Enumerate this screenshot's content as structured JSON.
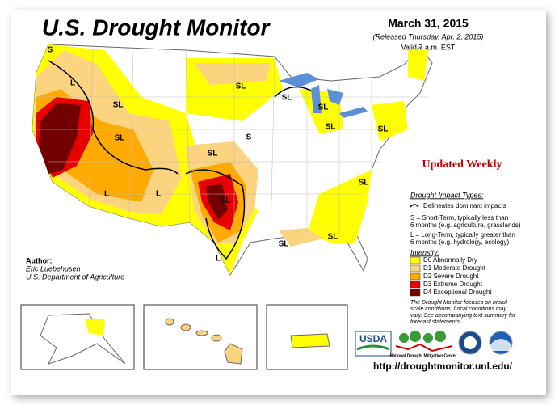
{
  "header": {
    "title": "U.S. Drought Monitor",
    "date": "March 31, 2015",
    "released": "(Released Thursday, Apr. 2, 2015)",
    "valid": "Valid 7 a.m. EST"
  },
  "banner": "Updated Weekly",
  "map_labels": [
    "S",
    "L",
    "SL",
    "SL",
    "L",
    "L",
    "SL",
    "SL",
    "L",
    "SL",
    "S",
    "SL",
    "SL",
    "SL",
    "SL",
    "SL",
    "SL",
    "SL",
    "L",
    "S",
    "SL"
  ],
  "legend": {
    "impact_title": "Drought Impact Types:",
    "delineates": "Delineates dominant impacts",
    "short_term": [
      "S = Short-Term, typically less than",
      "6 months (e.g. agriculture, grasslands)"
    ],
    "long_term": [
      "L = Long-Term, typically greater than",
      "6 months (e.g. hydrology, ecology)"
    ],
    "intensity_title": "Intensity:",
    "intensity": [
      {
        "name": "D0 Abnormally Dry",
        "color": "#ffff00"
      },
      {
        "name": "D1 Moderate Drought",
        "color": "#fcd37f"
      },
      {
        "name": "D2 Severe Drought",
        "color": "#ffaa00"
      },
      {
        "name": "D3 Extreme Drought",
        "color": "#e60000"
      },
      {
        "name": "D4 Exceptional Drought",
        "color": "#730000"
      }
    ]
  },
  "author": {
    "heading": "Author:",
    "name": "Eric Luebehusen",
    "org": "U.S. Department of Agriculture"
  },
  "note": [
    "The Drought Monitor focuses on broad-",
    "scale conditions. Local conditions may",
    "vary. See accompanying text summary for",
    "forecast statements."
  ],
  "logos": {
    "usda": "USDA",
    "ndmc": "National Drought Mitigation Center"
  },
  "url": "http://droughtmonitor.unl.edu/"
}
